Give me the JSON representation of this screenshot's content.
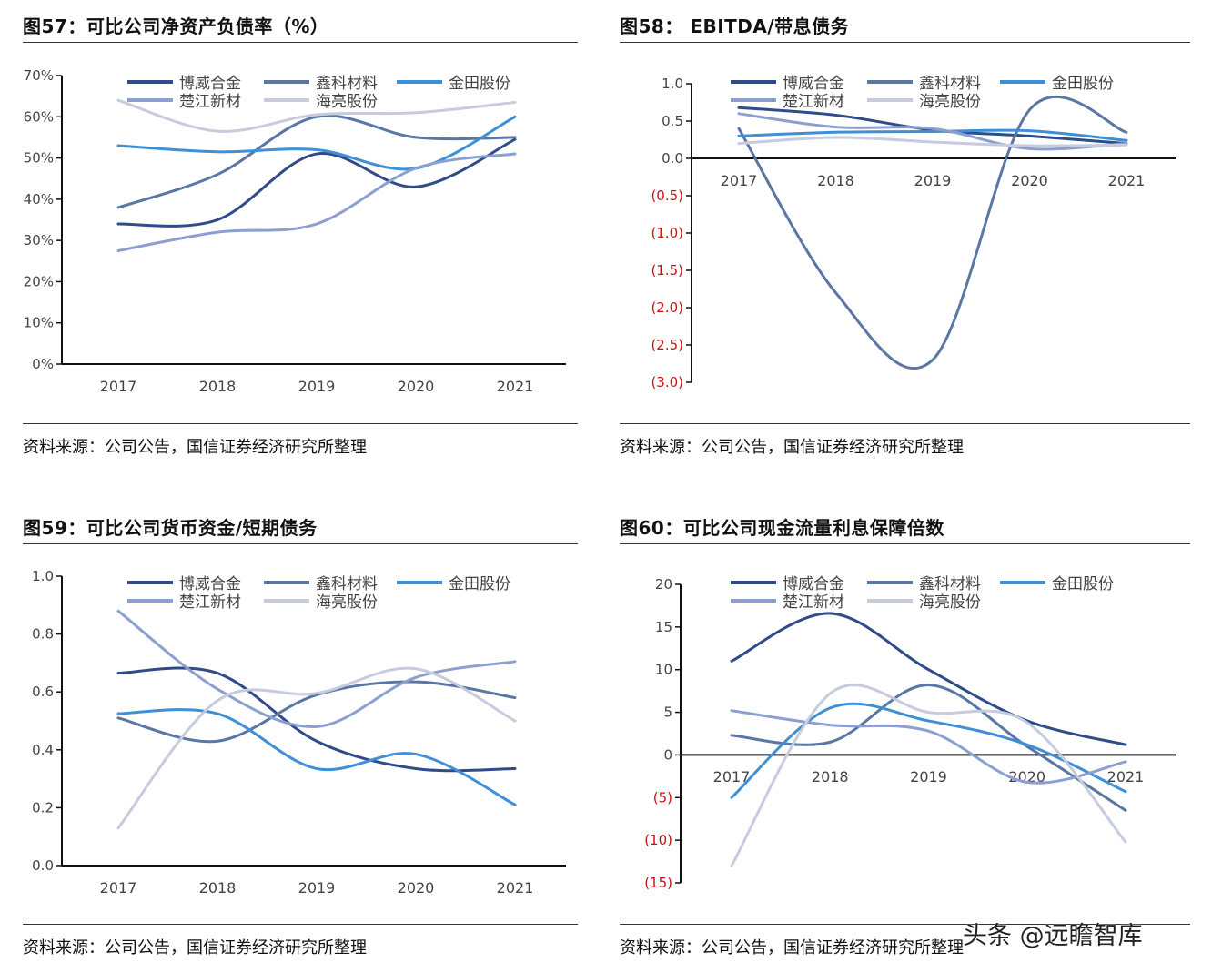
{
  "colors": {
    "博威合金": "#2f4b8a",
    "鑫科材料": "#5a76a3",
    "金田股份": "#3f8fd6",
    "楚江新材": "#8c9fd1",
    "海亮股份": "#c6cbdd",
    "negative_label": "#cc1111"
  },
  "panels": [
    {
      "title": "图57：可比公司净资产负债率（%）",
      "source": "资料来源：公司公告，国信证券经济研究所整理"
    },
    {
      "title": "图58： EBITDA/带息债务",
      "source": "资料来源：公司公告，国信证券经济研究所整理"
    },
    {
      "title": "图59：可比公司货币资金/短期债务",
      "source": "资料来源：公司公告，国信证券经济研究所整理"
    },
    {
      "title": "图60：可比公司现金流量利息保障倍数",
      "source": "资料来源：公司公告，国信证券经济研究所整理"
    }
  ],
  "watermark": "头条 @远瞻智库",
  "chart_data": [
    {
      "type": "line",
      "title": "图57：可比公司净资产负债率（%）",
      "categories": [
        "2017",
        "2018",
        "2019",
        "2020",
        "2021"
      ],
      "ylim": [
        0,
        70
      ],
      "yticks": [
        {
          "v": 0,
          "label": "0%"
        },
        {
          "v": 10,
          "label": "10%"
        },
        {
          "v": 20,
          "label": "20%"
        },
        {
          "v": 30,
          "label": "30%"
        },
        {
          "v": 40,
          "label": "40%"
        },
        {
          "v": 50,
          "label": "50%"
        },
        {
          "v": 60,
          "label": "60%"
        },
        {
          "v": 70,
          "label": "70%"
        }
      ],
      "legend": "top",
      "grid": false,
      "smooth": true,
      "series": [
        {
          "name": "博威合金",
          "values": [
            34,
            35,
            51,
            43,
            54.5
          ]
        },
        {
          "name": "鑫科材料",
          "values": [
            38,
            46,
            60,
            55,
            55
          ]
        },
        {
          "name": "金田股份",
          "values": [
            53,
            51.5,
            52,
            47.5,
            60
          ]
        },
        {
          "name": "楚江新材",
          "values": [
            27.5,
            32,
            34,
            47.5,
            51
          ]
        },
        {
          "name": "海亮股份",
          "values": [
            64,
            56.5,
            60.5,
            61,
            63.5
          ]
        }
      ]
    },
    {
      "type": "line",
      "title": "图58： EBITDA/带息债务",
      "categories": [
        "2017",
        "2018",
        "2019",
        "2020",
        "2021"
      ],
      "ylim": [
        -3,
        1
      ],
      "yticks": [
        {
          "v": 1,
          "label": "1.0"
        },
        {
          "v": 0.5,
          "label": "0.5"
        },
        {
          "v": 0,
          "label": "0.0"
        },
        {
          "v": -0.5,
          "label": "(0.5)"
        },
        {
          "v": -1,
          "label": "(1.0)"
        },
        {
          "v": -1.5,
          "label": "(1.5)"
        },
        {
          "v": -2,
          "label": "(2.0)"
        },
        {
          "v": -2.5,
          "label": "(2.5)"
        },
        {
          "v": -3,
          "label": "(3.0)"
        }
      ],
      "legend": "top",
      "grid": false,
      "smooth": true,
      "series": [
        {
          "name": "博威合金",
          "values": [
            0.68,
            0.58,
            0.38,
            0.3,
            0.2
          ]
        },
        {
          "name": "鑫科材料",
          "values": [
            0.4,
            -1.8,
            -2.7,
            0.65,
            0.35
          ]
        },
        {
          "name": "金田股份",
          "values": [
            0.3,
            0.35,
            0.36,
            0.37,
            0.24
          ]
        },
        {
          "name": "楚江新材",
          "values": [
            0.6,
            0.42,
            0.4,
            0.13,
            0.2
          ]
        },
        {
          "name": "海亮股份",
          "values": [
            0.2,
            0.28,
            0.22,
            0.17,
            0.18
          ]
        }
      ]
    },
    {
      "type": "line",
      "title": "图59：可比公司货币资金/短期债务",
      "categories": [
        "2017",
        "2018",
        "2019",
        "2020",
        "2021"
      ],
      "ylim": [
        0,
        1
      ],
      "yticks": [
        {
          "v": 0,
          "label": "0.0"
        },
        {
          "v": 0.2,
          "label": "0.2"
        },
        {
          "v": 0.4,
          "label": "0.4"
        },
        {
          "v": 0.6,
          "label": "0.6"
        },
        {
          "v": 0.8,
          "label": "0.8"
        },
        {
          "v": 1,
          "label": "1.0"
        }
      ],
      "legend": "top",
      "grid": false,
      "smooth": true,
      "series": [
        {
          "name": "博威合金",
          "values": [
            0.665,
            0.665,
            0.43,
            0.335,
            0.335
          ]
        },
        {
          "name": "鑫科材料",
          "values": [
            0.51,
            0.43,
            0.59,
            0.635,
            0.58
          ]
        },
        {
          "name": "金田股份",
          "values": [
            0.525,
            0.525,
            0.335,
            0.385,
            0.21
          ]
        },
        {
          "name": "楚江新材",
          "values": [
            0.88,
            0.61,
            0.48,
            0.65,
            0.705
          ]
        },
        {
          "name": "海亮股份",
          "values": [
            0.13,
            0.57,
            0.595,
            0.68,
            0.5
          ]
        }
      ]
    },
    {
      "type": "line",
      "title": "图60：可比公司现金流量利息保障倍数",
      "categories": [
        "2017",
        "2018",
        "2019",
        "2020",
        "2021"
      ],
      "ylim": [
        -15,
        20
      ],
      "yticks": [
        {
          "v": 20,
          "label": "20"
        },
        {
          "v": 15,
          "label": "15"
        },
        {
          "v": 10,
          "label": "10"
        },
        {
          "v": 5,
          "label": "5"
        },
        {
          "v": 0,
          "label": "0"
        },
        {
          "v": -5,
          "label": "(5)"
        },
        {
          "v": -10,
          "label": "(10)"
        },
        {
          "v": -15,
          "label": "(15)"
        }
      ],
      "legend": "top",
      "grid": false,
      "smooth": true,
      "series": [
        {
          "name": "博威合金",
          "values": [
            11,
            16.6,
            10,
            4,
            1.2
          ]
        },
        {
          "name": "鑫科材料",
          "values": [
            2.3,
            1.5,
            8.2,
            1,
            -6.5
          ]
        },
        {
          "name": "金田股份",
          "values": [
            -5,
            5.5,
            4,
            1.2,
            -4.3
          ]
        },
        {
          "name": "楚江新材",
          "values": [
            5.2,
            3.5,
            2.8,
            -3.2,
            -0.8
          ]
        },
        {
          "name": "海亮股份",
          "values": [
            -13,
            7.2,
            5,
            3.8,
            -10.2
          ]
        }
      ]
    }
  ]
}
